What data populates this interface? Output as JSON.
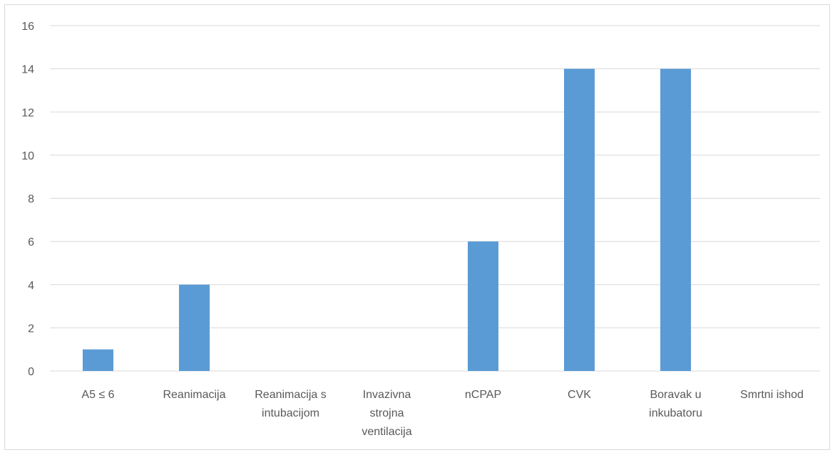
{
  "chart_data": {
    "type": "bar",
    "title": "",
    "xlabel": "",
    "ylabel": "",
    "ylim": [
      0,
      16
    ],
    "yticks": [
      0,
      2,
      4,
      6,
      8,
      10,
      12,
      14,
      16
    ],
    "grid": true,
    "legend": "none",
    "bar_color": "#5b9bd5",
    "categories": [
      [
        "A5 ≤ 6"
      ],
      [
        "Reanimacija"
      ],
      [
        "Reanimacija s",
        "intubacijom"
      ],
      [
        "Invazivna",
        "strojna",
        "ventilacija"
      ],
      [
        "nCPAP"
      ],
      [
        "CVK"
      ],
      [
        "Boravak u",
        "inkubatoru"
      ],
      [
        "Smrtni ishod"
      ]
    ],
    "values": [
      1,
      4,
      0,
      0,
      6,
      14,
      14,
      0
    ]
  }
}
